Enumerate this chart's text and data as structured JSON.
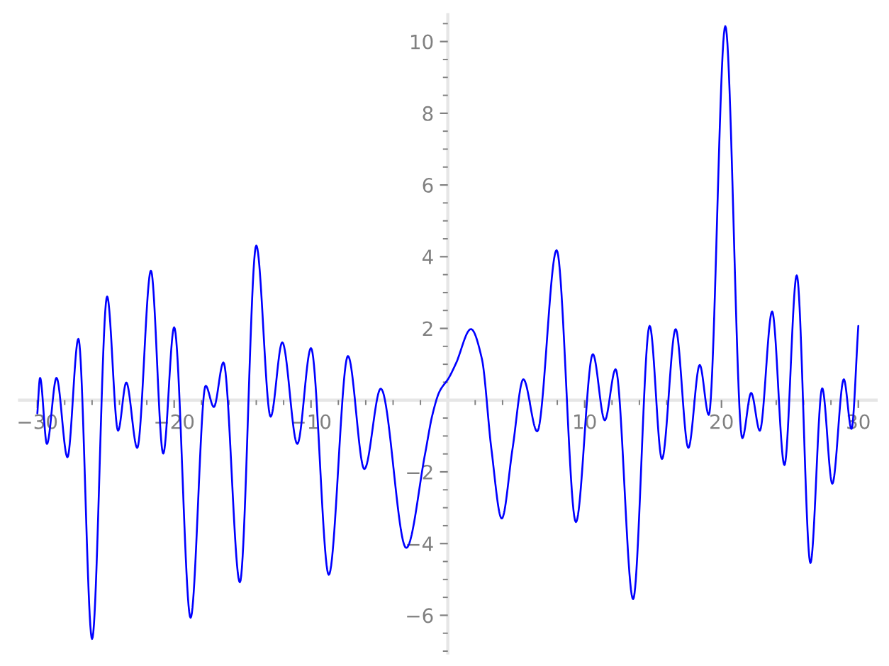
{
  "chart_data": {
    "type": "line",
    "color": "#0000ff",
    "x": [
      -30,
      -29.8,
      -29.3,
      -28.6,
      -27.8,
      -27.0,
      -26.0,
      -24.9,
      -24.1,
      -23.5,
      -22.7,
      -21.7,
      -20.8,
      -20.0,
      -18.8,
      -17.7,
      -17.1,
      -16.4,
      -15.2,
      -14.0,
      -12.95,
      -12.1,
      -11.0,
      -10.0,
      -8.7,
      -7.3,
      -6.1,
      -4.9,
      -3.04,
      -1.66,
      -1.14,
      -0.62,
      0.07,
      0.59,
      1.69,
      2.49,
      3.18,
      3.94,
      4.73,
      5.52,
      6.53,
      7.95,
      9.36,
      10.6,
      11.47,
      12.26,
      13.54,
      14.75,
      15.65,
      16.65,
      17.58,
      18.41,
      19.07,
      20.28,
      21.52,
      22.17,
      22.8,
      23.7,
      24.6,
      25.5,
      26.5,
      27.36,
      28.1,
      28.94,
      29.5,
      30
    ],
    "values": [
      -0.37,
      0.62,
      -1.22,
      0.62,
      -1.59,
      1.71,
      -6.66,
      2.89,
      -0.85,
      0.49,
      -1.33,
      3.61,
      -1.49,
      2.03,
      -6.07,
      0.4,
      -0.19,
      1.05,
      -5.08,
      4.31,
      -0.46,
      1.61,
      -1.22,
      1.45,
      -4.87,
      1.23,
      -1.92,
      0.32,
      -4.12,
      -1.49,
      -0.43,
      0.23,
      0.62,
      1.02,
      1.98,
      1.15,
      -1.35,
      -3.3,
      -1.35,
      0.58,
      -0.87,
      4.18,
      -3.4,
      1.28,
      -0.56,
      0.86,
      -5.55,
      2.07,
      -1.64,
      1.98,
      -1.33,
      0.98,
      -0.41,
      10.43,
      -1.06,
      0.2,
      -0.85,
      2.47,
      -1.81,
      3.48,
      -4.54,
      0.33,
      -2.33,
      0.58,
      -0.8,
      2.07
    ],
    "xlim": [
      -31.3,
      31.3
    ],
    "ylim": [
      -7.05,
      10.75
    ],
    "xticks": [
      -30,
      {
        "value": -28,
        "label": null
      },
      {
        "value": -26,
        "label": null
      },
      {
        "value": -24,
        "label": null
      },
      {
        "value": -22,
        "label": null
      },
      -20,
      {
        "value": -18,
        "label": null
      },
      {
        "value": -16,
        "label": null
      },
      {
        "value": -14,
        "label": null
      },
      {
        "value": -12,
        "label": null
      },
      -10,
      {
        "value": -8,
        "label": null
      },
      {
        "value": -6,
        "label": null
      },
      {
        "value": -4,
        "label": null
      },
      {
        "value": -2,
        "label": null
      },
      {
        "value": 2,
        "label": null
      },
      {
        "value": 4,
        "label": null
      },
      {
        "value": 6,
        "label": null
      },
      {
        "value": 8,
        "label": null
      },
      10,
      {
        "value": 12,
        "label": null
      },
      {
        "value": 14,
        "label": null
      },
      {
        "value": 16,
        "label": null
      },
      {
        "value": 18,
        "label": null
      },
      20,
      {
        "value": 22,
        "label": null
      },
      {
        "value": 24,
        "label": null
      },
      {
        "value": 26,
        "label": null
      },
      {
        "value": 28,
        "label": null
      },
      30
    ],
    "yticks": [
      {
        "value": -7,
        "label": null
      },
      {
        "value": -6.5,
        "label": null
      },
      -6,
      {
        "value": -5.5,
        "label": null
      },
      {
        "value": -5,
        "label": null
      },
      {
        "value": -4.5,
        "label": null
      },
      -4,
      {
        "value": -3.5,
        "label": null
      },
      {
        "value": -3,
        "label": null
      },
      {
        "value": -2.5,
        "label": null
      },
      -2,
      {
        "value": -1.5,
        "label": null
      },
      {
        "value": -1,
        "label": null
      },
      {
        "value": -0.5,
        "label": null
      },
      {
        "value": 0.5,
        "label": null
      },
      {
        "value": 1,
        "label": null
      },
      {
        "value": 1.5,
        "label": null
      },
      2,
      {
        "value": 2.5,
        "label": null
      },
      {
        "value": 3,
        "label": null
      },
      {
        "value": 3.5,
        "label": null
      },
      4,
      {
        "value": 4.5,
        "label": null
      },
      {
        "value": 5,
        "label": null
      },
      {
        "value": 5.5,
        "label": null
      },
      6,
      {
        "value": 6.5,
        "label": null
      },
      {
        "value": 7,
        "label": null
      },
      {
        "value": 7.5,
        "label": null
      },
      8,
      {
        "value": 8.5,
        "label": null
      },
      {
        "value": 9,
        "label": null
      },
      {
        "value": 9.5,
        "label": null
      },
      10,
      {
        "value": 10.5,
        "label": null
      }
    ]
  }
}
